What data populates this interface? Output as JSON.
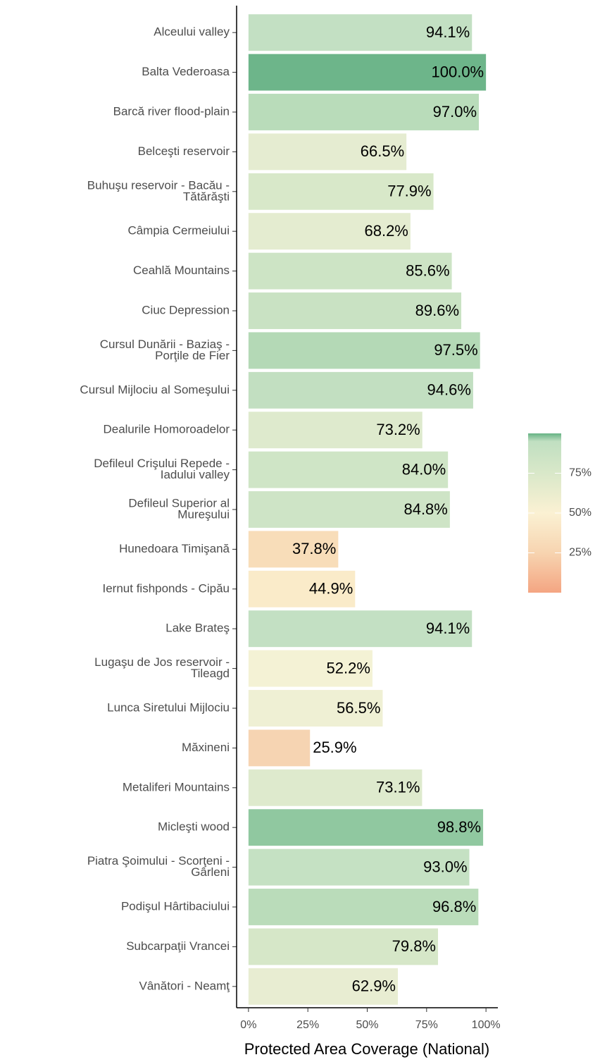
{
  "chart_data": {
    "type": "bar",
    "orientation": "horizontal",
    "x_label": "Protected Area Coverage (National)",
    "categories": [
      [
        "Alceului valley"
      ],
      [
        "Balta Vederoasa"
      ],
      [
        "Barcă river flood-plain"
      ],
      [
        "Belceşti reservoir"
      ],
      [
        "Buhuşu reservoir - Bacău -",
        "Tătărăşti"
      ],
      [
        "Câmpia Cermeiului"
      ],
      [
        "Ceahlă Mountains"
      ],
      [
        "Ciuc Depression"
      ],
      [
        "Cursul Dunării - Baziaş -",
        "Porţile de Fier"
      ],
      [
        "Cursul Mijlociu al Someşului"
      ],
      [
        "Dealurile Homoroadelor"
      ],
      [
        "Defileul Crişului Repede -",
        "Iadului valley"
      ],
      [
        "Defileul Superior al",
        "Mureşului"
      ],
      [
        "Hunedoara Timişană"
      ],
      [
        "Iernut fishponds - Cipău"
      ],
      [
        "Lake Brateş"
      ],
      [
        "Lugaşu de Jos reservoir -",
        "Tileagd"
      ],
      [
        "Lunca Siretului Mijlociu"
      ],
      [
        "Măxineni"
      ],
      [
        "Metaliferi Mountains"
      ],
      [
        "Micleşti wood"
      ],
      [
        "Piatra Şoimului - Scorţeni -",
        "Gârleni"
      ],
      [
        "Podişul Hârtibaciului"
      ],
      [
        "Subcarpaţii Vrancei"
      ],
      [
        "Vânători - Neamţ"
      ]
    ],
    "values": [
      94.1,
      100.0,
      97.0,
      66.5,
      77.9,
      68.2,
      85.6,
      89.6,
      97.5,
      94.6,
      73.2,
      84.0,
      84.8,
      37.8,
      44.9,
      94.1,
      52.2,
      56.5,
      25.9,
      73.1,
      98.8,
      93.0,
      96.8,
      79.8,
      62.9
    ],
    "value_labels": [
      "94.1%",
      "100.0%",
      "97.0%",
      "66.5%",
      "77.9%",
      "68.2%",
      "85.6%",
      "89.6%",
      "97.5%",
      "94.6%",
      "73.2%",
      "84.0%",
      "84.8%",
      "37.8%",
      "44.9%",
      "94.1%",
      "52.2%",
      "56.5%",
      "25.9%",
      "73.1%",
      "98.8%",
      "93.0%",
      "96.8%",
      "79.8%",
      "62.9%"
    ],
    "colors": [
      "#c3e0c3",
      "#6db58a",
      "#b9dcba",
      "#e5ecd1",
      "#d8e8c9",
      "#e4ecd0",
      "#cde4c5",
      "#c9e2c3",
      "#b4d9b6",
      "#c2dfc1",
      "#deeacd",
      "#cfe5c6",
      "#cee4c6",
      "#f8ddb9",
      "#faebc9",
      "#c3e0c3",
      "#f4f2d5",
      "#eff0d4",
      "#f6d4b2",
      "#deeacd",
      "#90c8a0",
      "#c5e1c3",
      "#badcba",
      "#d6e7c8",
      "#e8edd2"
    ],
    "xlim": [
      -5,
      105
    ],
    "xticks": [
      {
        "value": 0,
        "label": "0%"
      },
      {
        "value": 25,
        "label": "25%"
      },
      {
        "value": 50,
        "label": "50%"
      },
      {
        "value": 75,
        "label": "75%"
      },
      {
        "value": 100,
        "label": "100%"
      }
    ],
    "legend": {
      "lim": [
        0,
        100
      ],
      "ticks": [
        {
          "value": 75,
          "label": "75%"
        },
        {
          "value": 50,
          "label": "50%"
        },
        {
          "value": 25,
          "label": "25%"
        }
      ],
      "colorscale": [
        {
          "value": 0,
          "color": "#f4a582"
        },
        {
          "value": 25,
          "color": "#f7d4b0"
        },
        {
          "value": 50,
          "color": "#fbf1d3"
        },
        {
          "value": 75,
          "color": "#d9e8c9"
        },
        {
          "value": 95,
          "color": "#c0dfc1"
        },
        {
          "value": 100,
          "color": "#66b385"
        }
      ]
    }
  }
}
